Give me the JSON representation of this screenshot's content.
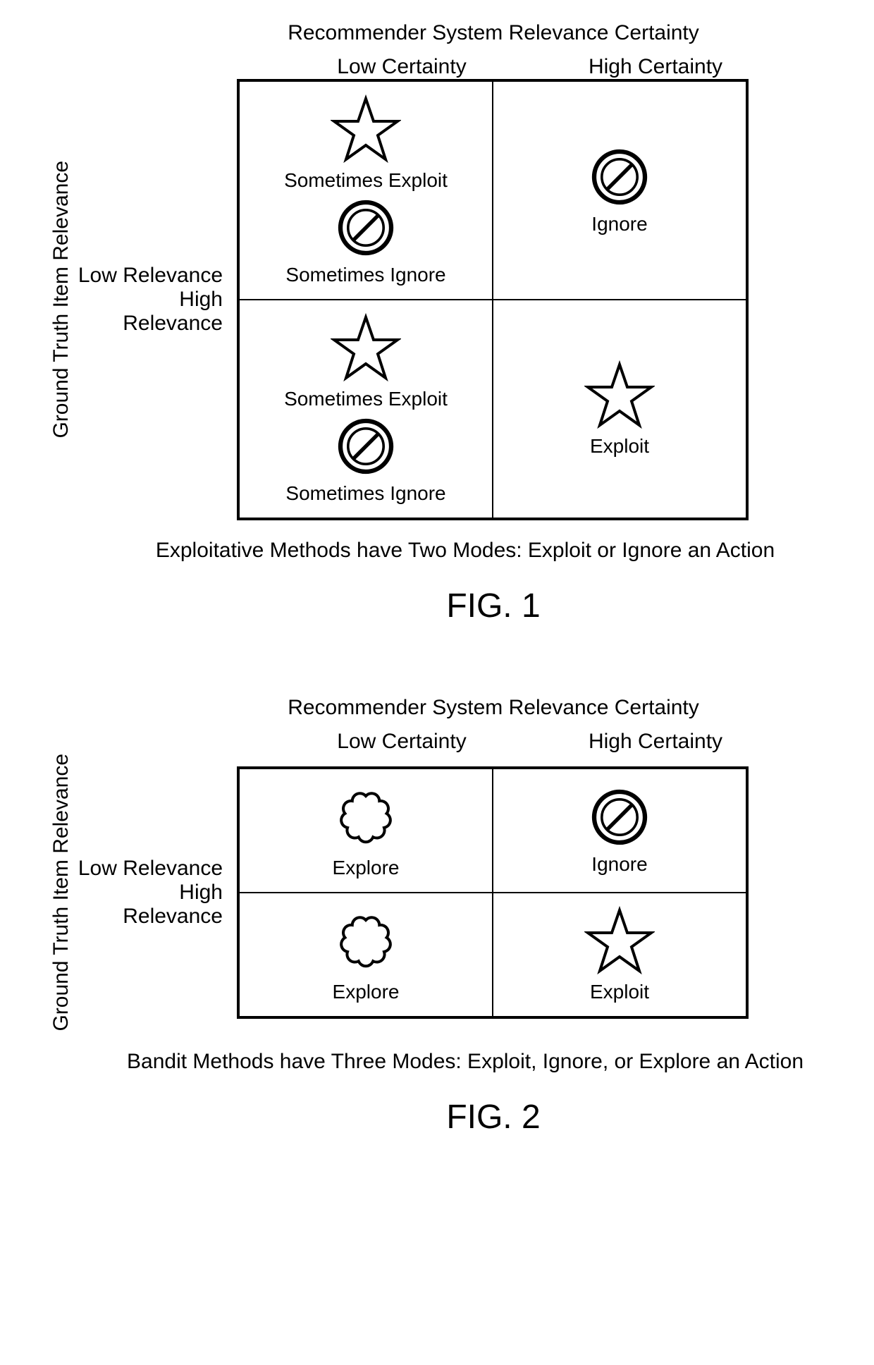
{
  "icons": {
    "star_size": 100,
    "prohibit_size": 90,
    "cloud_size": 100,
    "stroke_color": "#000000",
    "stroke_width": 4,
    "fill": "none"
  },
  "fig1": {
    "top_title": "Recommender System Relevance Certainty",
    "col_headers": [
      "Low Certainty",
      "High Certainty"
    ],
    "y_axis": "Ground Truth Item Relevance",
    "row_labels": [
      "Low Relevance",
      "High Relevance"
    ],
    "cells": {
      "r0c0": {
        "items": [
          {
            "icon": "star"
          },
          {
            "text": "Sometimes Exploit"
          },
          {
            "icon": "prohibit"
          },
          {
            "text": "Sometimes Ignore"
          }
        ]
      },
      "r0c1": {
        "items": [
          {
            "icon": "prohibit"
          },
          {
            "text": "Ignore"
          }
        ]
      },
      "r1c0": {
        "items": [
          {
            "icon": "star"
          },
          {
            "text": "Sometimes Exploit"
          },
          {
            "icon": "prohibit"
          },
          {
            "text": "Sometimes Ignore"
          }
        ]
      },
      "r1c1": {
        "items": [
          {
            "icon": "star"
          },
          {
            "text": "Exploit"
          }
        ]
      }
    },
    "caption": "Exploitative Methods have Two Modes: Exploit or Ignore an Action",
    "label": "FIG. 1"
  },
  "fig2": {
    "top_title": "Recommender System Relevance Certainty",
    "col_headers": [
      "Low Certainty",
      "High Certainty"
    ],
    "y_axis": "Ground Truth Item Relevance",
    "row_labels": [
      "Low Relevance",
      "High Relevance"
    ],
    "cells": {
      "r0c0": {
        "items": [
          {
            "icon": "cloud"
          },
          {
            "text": "Explore"
          }
        ]
      },
      "r0c1": {
        "items": [
          {
            "icon": "prohibit"
          },
          {
            "text": "Ignore"
          }
        ]
      },
      "r1c0": {
        "items": [
          {
            "icon": "cloud"
          },
          {
            "text": "Explore"
          }
        ]
      },
      "r1c1": {
        "items": [
          {
            "icon": "star"
          },
          {
            "text": "Exploit"
          }
        ]
      }
    },
    "caption": "Bandit Methods have Three Modes: Exploit, Ignore, or Explore an Action",
    "label": "FIG. 2"
  }
}
